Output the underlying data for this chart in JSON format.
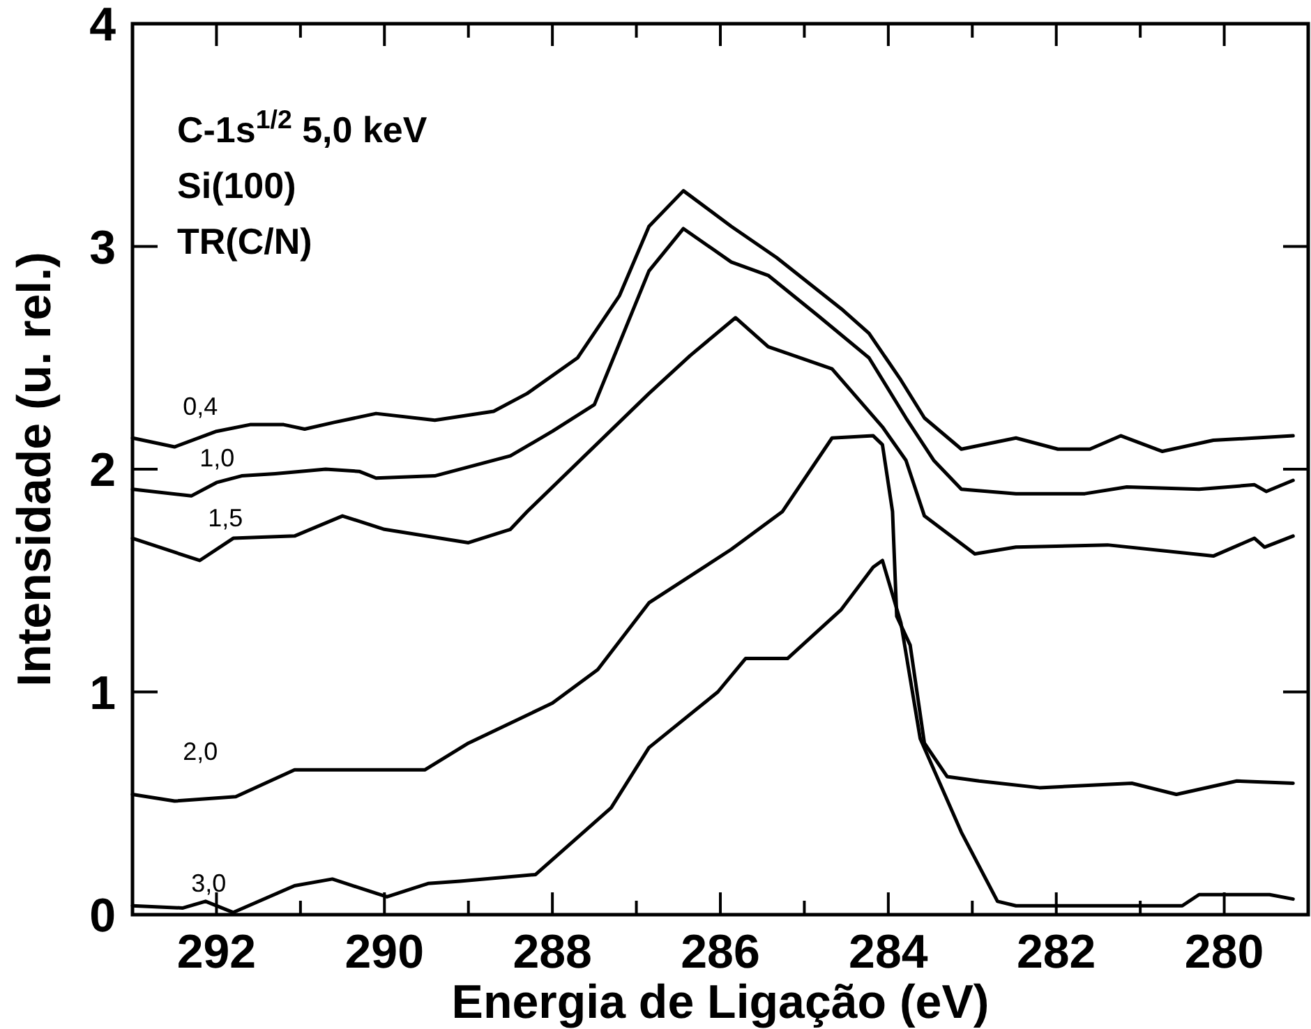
{
  "chart_data": {
    "type": "line",
    "xlabel": "Energia de Ligação (eV)",
    "ylabel": "Intensidade (u. rel.)",
    "annotations": [
      "C-1s$^{1/2}$ 5,0 keV",
      "Si(100)",
      "TR(C/N)"
    ],
    "xlim": [
      293,
      279
    ],
    "ylim": [
      0,
      4
    ],
    "xticks": [
      {
        "value": 293,
        "label": null
      },
      292,
      {
        "value": 291,
        "label": null
      },
      290,
      {
        "value": 289,
        "label": null
      },
      288,
      {
        "value": 287,
        "label": null
      },
      286,
      {
        "value": 285,
        "label": null
      },
      284,
      {
        "value": 283,
        "label": null
      },
      282,
      {
        "value": 281,
        "label": null
      },
      280,
      {
        "value": 279,
        "label": null
      }
    ],
    "yticks": [
      0,
      1,
      2,
      3,
      4
    ],
    "grid": false,
    "marker": "none",
    "line_style": "solid",
    "series": [
      {
        "name": "0,4",
        "color": "#000000",
        "x": [
          293,
          292.5,
          292.0,
          291.6,
          291.2,
          290.95,
          290.6,
          290.1,
          289.4,
          288.7,
          288.3,
          287.7,
          287.2,
          286.85,
          286.44,
          285.87,
          285.33,
          284.56,
          284.23,
          283.85,
          283.57,
          283.13,
          282.48,
          281.98,
          281.6,
          281.23,
          280.74,
          280.13,
          279.64,
          279.18
        ],
        "values": [
          2.14,
          2.1,
          2.17,
          2.2,
          2.2,
          2.18,
          2.21,
          2.25,
          2.22,
          2.26,
          2.34,
          2.5,
          2.78,
          3.09,
          3.25,
          3.09,
          2.95,
          2.72,
          2.61,
          2.4,
          2.23,
          2.09,
          2.14,
          2.09,
          2.09,
          2.15,
          2.08,
          2.13,
          2.14,
          2.15
        ]
      },
      {
        "name": "1,0",
        "color": "#000000",
        "x": [
          293,
          292.3,
          292.0,
          291.7,
          291.3,
          290.7,
          290.3,
          290.1,
          289.4,
          288.5,
          288.0,
          287.5,
          286.85,
          286.44,
          285.87,
          285.43,
          284.84,
          284.23,
          283.79,
          283.46,
          283.13,
          282.48,
          281.66,
          281.16,
          280.3,
          279.64,
          279.5,
          279.18
        ],
        "values": [
          1.91,
          1.88,
          1.94,
          1.97,
          1.98,
          2.0,
          1.99,
          1.96,
          1.97,
          2.06,
          2.17,
          2.29,
          2.89,
          3.08,
          2.93,
          2.87,
          2.69,
          2.5,
          2.23,
          2.04,
          1.91,
          1.89,
          1.89,
          1.92,
          1.91,
          1.93,
          1.9,
          1.95
        ]
      },
      {
        "name": "1,5",
        "color": "#000000",
        "x": [
          293,
          292.2,
          291.8,
          291.07,
          290.5,
          290.0,
          289.0,
          288.5,
          288.3,
          286.85,
          286.36,
          285.82,
          285.43,
          284.67,
          284.07,
          283.79,
          283.57,
          282.97,
          282.48,
          281.39,
          280.13,
          279.64,
          279.52,
          279.18
        ],
        "values": [
          1.69,
          1.59,
          1.69,
          1.7,
          1.79,
          1.73,
          1.67,
          1.73,
          1.81,
          2.34,
          2.51,
          2.68,
          2.55,
          2.45,
          2.19,
          2.04,
          1.79,
          1.62,
          1.65,
          1.66,
          1.61,
          1.69,
          1.65,
          1.7
        ]
      },
      {
        "name": "2,0",
        "color": "#000000",
        "x": [
          293,
          292.5,
          291.77,
          291.07,
          290.3,
          289.52,
          289.0,
          288.0,
          287.46,
          286.85,
          285.87,
          285.26,
          284.67,
          284.18,
          284.07,
          283.95,
          283.9,
          283.74,
          283.57,
          283.3,
          282.92,
          282.2,
          281.1,
          280.57,
          279.85,
          279.18
        ],
        "values": [
          0.54,
          0.51,
          0.53,
          0.65,
          0.65,
          0.65,
          0.77,
          0.95,
          1.1,
          1.4,
          1.64,
          1.81,
          2.14,
          2.15,
          2.11,
          1.81,
          1.34,
          1.21,
          0.77,
          0.62,
          0.6,
          0.57,
          0.59,
          0.54,
          0.6,
          0.59
        ]
      },
      {
        "name": "3,0",
        "color": "#000000",
        "x": [
          293,
          292.4,
          292.13,
          291.8,
          291.07,
          290.62,
          289.97,
          289.48,
          289.1,
          288.2,
          287.3,
          286.85,
          286.03,
          285.7,
          285.2,
          284.56,
          284.18,
          284.07,
          283.85,
          283.62,
          283.13,
          282.7,
          282.48,
          281.39,
          280.5,
          280.3,
          279.46,
          279.18
        ],
        "values": [
          0.04,
          0.03,
          0.06,
          0.01,
          0.13,
          0.16,
          0.08,
          0.14,
          0.15,
          0.18,
          0.48,
          0.75,
          1.0,
          1.15,
          1.15,
          1.37,
          1.56,
          1.59,
          1.31,
          0.79,
          0.37,
          0.06,
          0.04,
          0.04,
          0.04,
          0.09,
          0.09,
          0.07
        ]
      }
    ]
  }
}
